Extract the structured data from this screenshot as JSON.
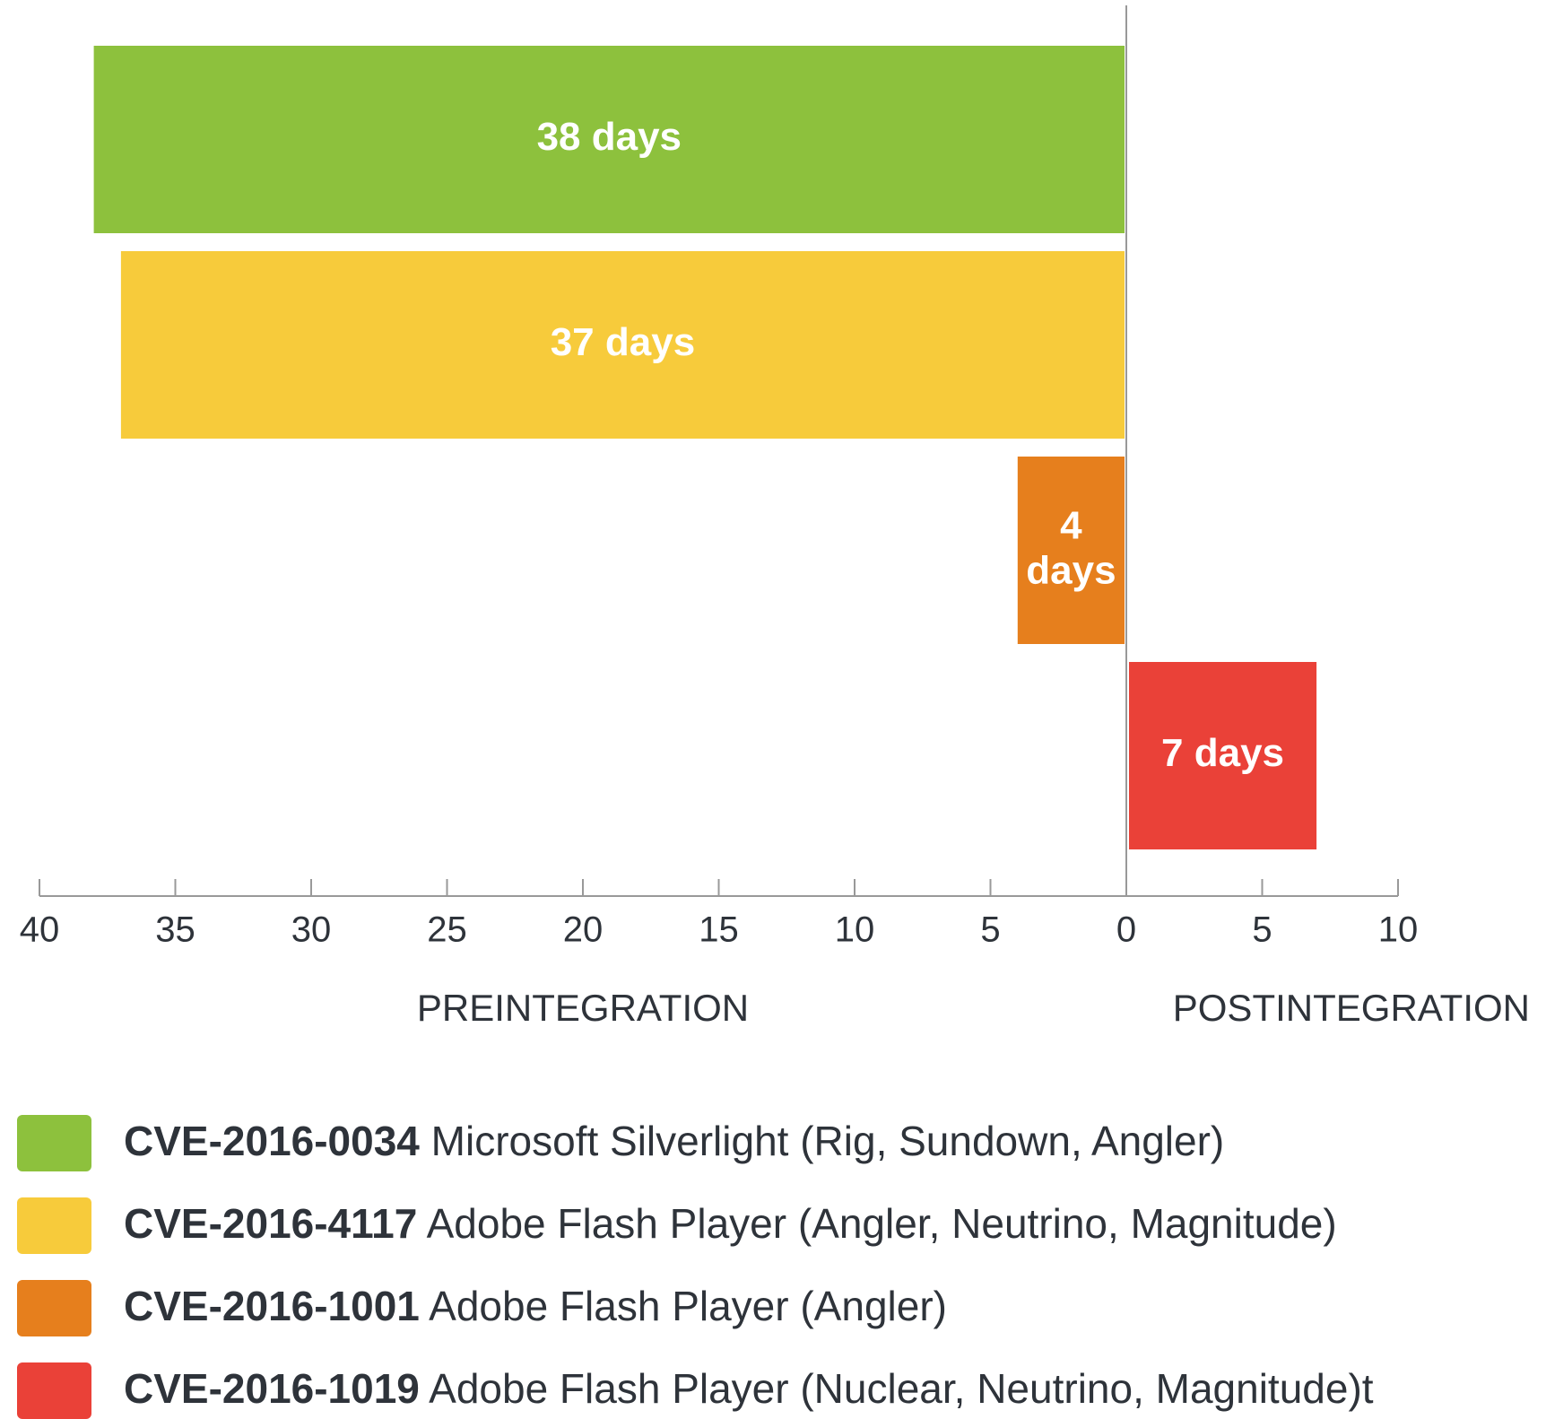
{
  "chart_data": {
    "type": "diverging-bar",
    "xlabel": "PREINTEGRATION",
    "x2label": "POSTINTEGRATION",
    "xlim": [
      40,
      0
    ],
    "xticks": [
      40,
      35,
      30,
      25,
      20,
      15,
      10,
      5,
      0
    ],
    "x2lim": [
      0,
      10
    ],
    "x2ticks": [
      5,
      10
    ],
    "series": [
      {
        "id": "CVE-2016-0034",
        "name": "Microsoft Silverlight (Rig, Sundown, Angler)",
        "color": "#8dc13d",
        "values": [
          38
        ],
        "value_labels": [
          "38 days"
        ],
        "axis": "x"
      },
      {
        "id": "CVE-2016-4117",
        "name": "Adobe Flash Player (Angler, Neutrino, Magnitude)",
        "color": "#f7cb3b",
        "values": [
          37
        ],
        "value_labels": [
          "37 days"
        ],
        "axis": "x"
      },
      {
        "id": "CVE-2016-1001",
        "name": "Adobe Flash Player (Angler)",
        "color": "#e67f1d",
        "values": [
          4
        ],
        "value_labels": [
          "4 days"
        ],
        "axis": "x"
      },
      {
        "id": "CVE-2016-1019",
        "name": "Adobe Flash Player (Nuclear, Neutrino, Magnitude)t",
        "color": "#ea4138",
        "values": [
          7
        ],
        "value_labels": [
          "7 days"
        ],
        "axis": "x2"
      }
    ]
  }
}
